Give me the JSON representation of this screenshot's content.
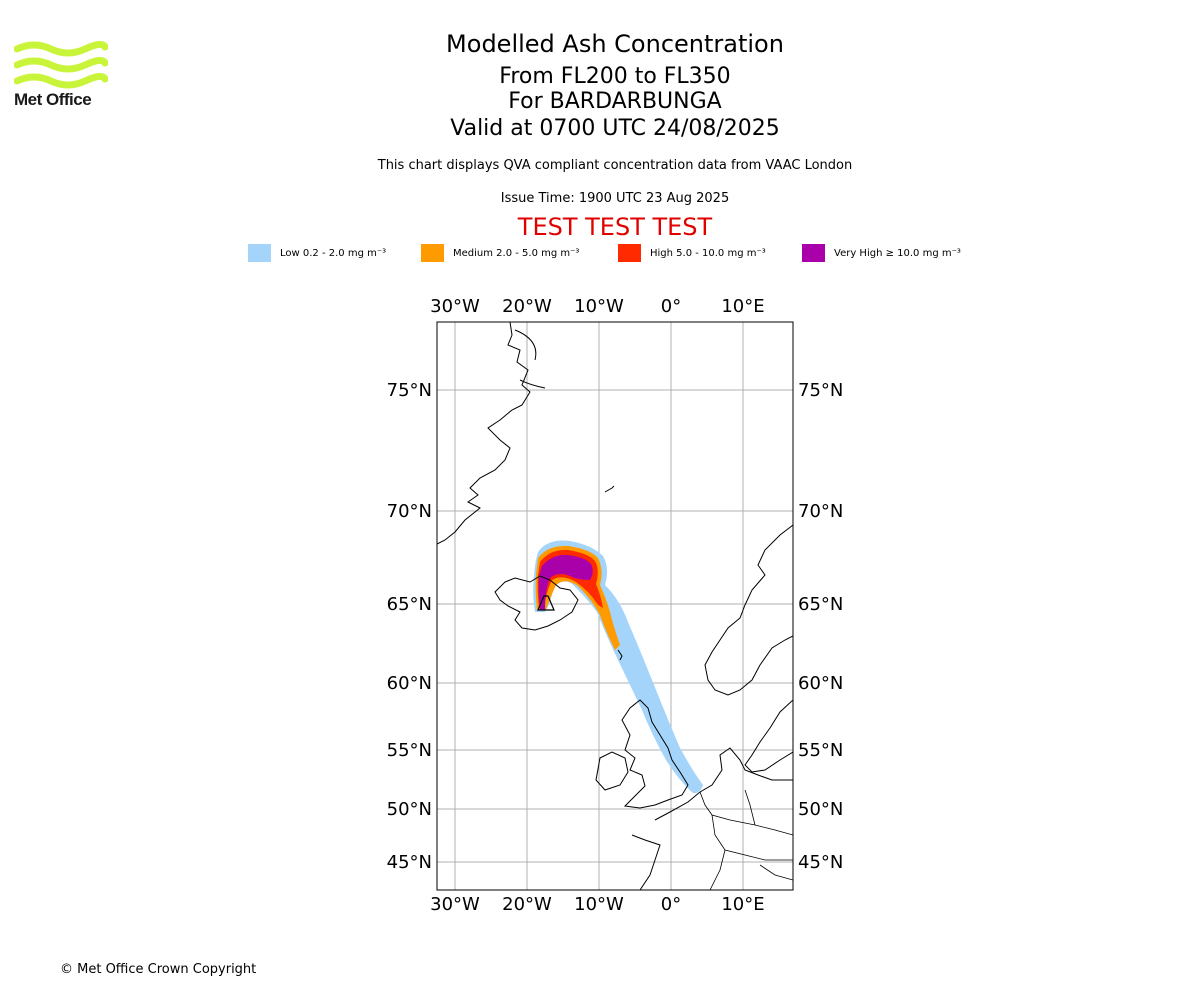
{
  "header": {
    "logo_text": "Met Office",
    "title": "Modelled Ash Concentration",
    "levels": "From FL200 to FL350",
    "volcano": "For BARDARBUNGA",
    "valid": "Valid at 0700 UTC 24/08/2025",
    "subtitle": "This chart displays QVA compliant concentration data from VAAC London",
    "issue": "Issue Time: 1900 UTC 23 Aug 2025",
    "test_banner": "TEST TEST TEST"
  },
  "legend": [
    {
      "label": "Low 0.2 - 2.0 mg m⁻³",
      "color": "#a4d4fa"
    },
    {
      "label": "Medium 2.0 - 5.0 mg m⁻³",
      "color": "#ff9a00"
    },
    {
      "label": "High 5.0 - 10.0 mg m⁻³",
      "color": "#ff2a00"
    },
    {
      "label": "Very High ≥ 10.0 mg m⁻³",
      "color": "#aa00aa"
    }
  ],
  "map": {
    "lon_labels": [
      "30°W",
      "20°W",
      "10°W",
      "0°",
      "10°E"
    ],
    "lat_labels": [
      "75°N",
      "70°N",
      "65°N",
      "60°N",
      "55°N",
      "50°N",
      "45°N"
    ],
    "gridlines": true,
    "colors": {
      "grid": "#b0b0b0",
      "coast": "#000000",
      "frame": "#000000"
    }
  },
  "footer": {
    "copyright": "© Met Office Crown Copyright"
  }
}
